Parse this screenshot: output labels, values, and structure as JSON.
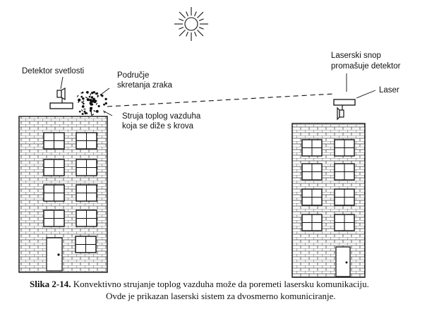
{
  "labels": {
    "detector": "Detektor svetlosti",
    "deflection_zone_line1": "Područje",
    "deflection_zone_line2": "skretanja zraka",
    "hot_air_line1": "Struja toplog vazduha",
    "hot_air_line2": "koja se diže s krova",
    "beam_miss_line1": "Laserski snop",
    "beam_miss_line2": "promašuje detektor",
    "laser": "Laser"
  },
  "caption": {
    "figure_label": "Slika 2-14.",
    "line1": "Konvektivno strujanje toplog vazduha može da poremeti lasersku komunikaciju.",
    "line2": "Ovde je prikazan laserski sistem za dvosmerno komuniciranje."
  },
  "icons": [
    "sun-icon",
    "detector-icon",
    "laser-icon",
    "laser-detector-icon",
    "door-icon"
  ]
}
